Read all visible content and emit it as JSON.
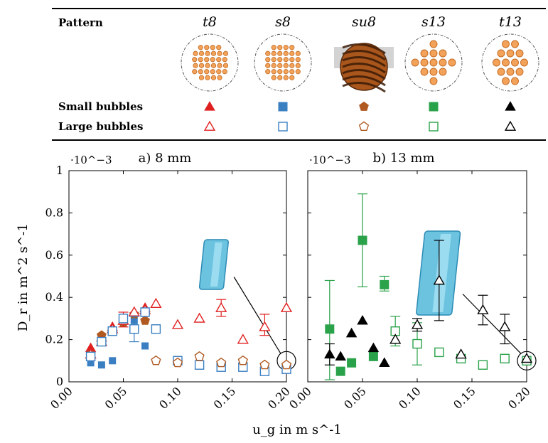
{
  "legend": {
    "header_label": "Pattern",
    "patterns": [
      {
        "id": "t8",
        "name": "t8",
        "color": "#e02020",
        "kind": "triangle",
        "layout": "hex-small"
      },
      {
        "id": "s8",
        "name": "s8",
        "color": "#3a7fc2",
        "kind": "square",
        "layout": "square-small"
      },
      {
        "id": "su8",
        "name": "su8",
        "color": "#b05a22",
        "kind": "pentagon",
        "layout": "photo"
      },
      {
        "id": "s13",
        "name": "s13",
        "color": "#2aa24a",
        "kind": "square",
        "layout": "square-large"
      },
      {
        "id": "t13",
        "name": "t13",
        "color": "#000000",
        "kind": "triangle",
        "layout": "hex-large"
      }
    ],
    "rows": [
      {
        "label": "Small bubbles",
        "filled": true
      },
      {
        "label": "Large bubbles",
        "filled": false
      }
    ]
  },
  "chart_data": [
    {
      "type": "scatter",
      "title": "a) 8 mm",
      "xlabel": "u_g in m s^-1",
      "ylabel": "D_r in m^2 s^-1",
      "y_multiplier": "·10^−3",
      "xlim": [
        0,
        0.2
      ],
      "ylim": [
        0,
        1
      ],
      "xticks": [
        "0.00",
        "0.05",
        "0.10",
        "0.15",
        "0.20"
      ],
      "yticks": [
        "0",
        "0.2",
        "0.4",
        "0.6",
        "0.8",
        "1"
      ],
      "series": [
        {
          "pattern": "t8",
          "size": "small",
          "points": [
            [
              0.02,
              0.16
            ],
            [
              0.03,
              0.21
            ],
            [
              0.04,
              0.26
            ],
            [
              0.05,
              0.29
            ],
            [
              0.06,
              0.33
            ],
            [
              0.07,
              0.35
            ]
          ]
        },
        {
          "pattern": "s8",
          "size": "small",
          "points": [
            [
              0.02,
              0.09
            ],
            [
              0.03,
              0.08
            ],
            [
              0.04,
              0.1
            ],
            [
              0.05,
              0.28
            ],
            [
              0.06,
              0.29
            ],
            [
              0.07,
              0.17
            ]
          ]
        },
        {
          "pattern": "su8",
          "size": "small",
          "points": [
            [
              0.02,
              0.13
            ],
            [
              0.03,
              0.22
            ],
            [
              0.04,
              0.24
            ],
            [
              0.05,
              0.28
            ],
            [
              0.06,
              0.32
            ],
            [
              0.07,
              0.29
            ]
          ]
        },
        {
          "pattern": "t8",
          "size": "large",
          "points": [
            [
              0.02,
              0.13
            ],
            [
              0.03,
              0.19
            ],
            [
              0.04,
              0.25
            ],
            [
              0.05,
              0.29
            ],
            [
              0.06,
              0.33
            ],
            [
              0.07,
              0.34
            ],
            [
              0.08,
              0.37
            ],
            [
              0.1,
              0.27
            ],
            [
              0.12,
              0.3
            ],
            [
              0.14,
              0.35
            ],
            [
              0.16,
              0.2
            ],
            [
              0.18,
              0.26
            ],
            [
              0.2,
              0.35
            ]
          ],
          "errors": [
            [
              0.05,
              0.26,
              0.33
            ],
            [
              0.14,
              0.31,
              0.39
            ],
            [
              0.18,
              0.22,
              0.32
            ]
          ]
        },
        {
          "pattern": "s8",
          "size": "large",
          "points": [
            [
              0.02,
              0.12
            ],
            [
              0.03,
              0.19
            ],
            [
              0.04,
              0.24
            ],
            [
              0.05,
              0.3
            ],
            [
              0.06,
              0.25
            ],
            [
              0.07,
              0.33
            ],
            [
              0.08,
              0.25
            ],
            [
              0.1,
              0.1
            ],
            [
              0.12,
              0.08
            ],
            [
              0.14,
              0.07
            ],
            [
              0.16,
              0.07
            ],
            [
              0.18,
              0.05
            ],
            [
              0.2,
              0.06
            ]
          ],
          "errors": [
            [
              0.06,
              0.19,
              0.31
            ]
          ]
        },
        {
          "pattern": "su8",
          "size": "large",
          "points": [
            [
              0.08,
              0.1
            ],
            [
              0.1,
              0.09
            ],
            [
              0.12,
              0.12
            ],
            [
              0.14,
              0.09
            ],
            [
              0.16,
              0.1
            ],
            [
              0.18,
              0.08
            ],
            [
              0.2,
              0.08
            ]
          ]
        }
      ],
      "inset": {
        "anchor": [
          0.2,
          0.1
        ]
      }
    },
    {
      "type": "scatter",
      "title": "b) 13 mm",
      "y_multiplier": "·10^−3",
      "xlim": [
        0,
        0.2
      ],
      "ylim": [
        0,
        1
      ],
      "xticks": [
        "0.00",
        "0.05",
        "0.10",
        "0.15",
        "0.20"
      ],
      "series": [
        {
          "pattern": "s13",
          "size": "small",
          "points": [
            [
              0.02,
              0.25
            ],
            [
              0.03,
              0.05
            ],
            [
              0.04,
              0.09
            ],
            [
              0.05,
              0.67
            ],
            [
              0.06,
              0.12
            ],
            [
              0.07,
              0.46
            ]
          ],
          "errors": [
            [
              0.02,
              0.01,
              0.48
            ],
            [
              0.05,
              0.45,
              0.89
            ],
            [
              0.07,
              0.43,
              0.5
            ]
          ]
        },
        {
          "pattern": "t13",
          "size": "small",
          "points": [
            [
              0.02,
              0.13
            ],
            [
              0.03,
              0.12
            ],
            [
              0.04,
              0.23
            ],
            [
              0.05,
              0.29
            ],
            [
              0.06,
              0.16
            ],
            [
              0.07,
              0.09
            ]
          ],
          "errors": [
            [
              0.02,
              0.08,
              0.18
            ]
          ]
        },
        {
          "pattern": "s13",
          "size": "large",
          "points": [
            [
              0.08,
              0.24
            ],
            [
              0.1,
              0.18
            ],
            [
              0.12,
              0.14
            ],
            [
              0.14,
              0.11
            ],
            [
              0.16,
              0.08
            ],
            [
              0.18,
              0.11
            ],
            [
              0.2,
              0.1
            ]
          ],
          "errors": [
            [
              0.08,
              0.17,
              0.31
            ],
            [
              0.1,
              0.08,
              0.28
            ]
          ]
        },
        {
          "pattern": "t13",
          "size": "large",
          "points": [
            [
              0.08,
              0.2
            ],
            [
              0.1,
              0.27
            ],
            [
              0.12,
              0.48
            ],
            [
              0.14,
              0.13
            ],
            [
              0.16,
              0.34
            ],
            [
              0.18,
              0.26
            ],
            [
              0.2,
              0.11
            ]
          ],
          "errors": [
            [
              0.1,
              0.24,
              0.3
            ],
            [
              0.12,
              0.29,
              0.67
            ],
            [
              0.16,
              0.27,
              0.41
            ],
            [
              0.18,
              0.18,
              0.32
            ]
          ]
        }
      ],
      "inset": {
        "anchor": [
          0.2,
          0.1
        ]
      }
    }
  ]
}
